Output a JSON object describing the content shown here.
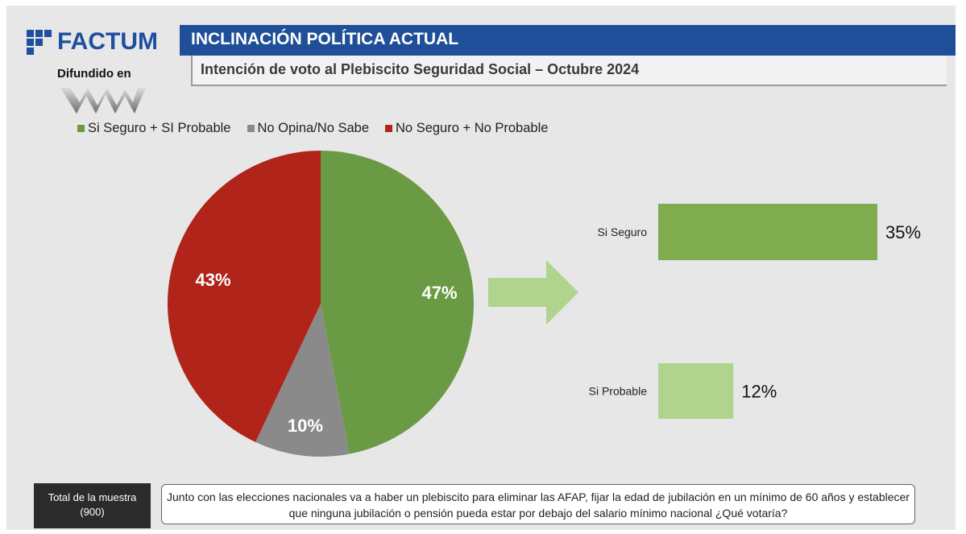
{
  "header": {
    "brand": "FACTUM",
    "brand_sub": "Difundido en",
    "title": "INCLINACIÓN POLÍTICA ACTUAL",
    "subtitle": "Intención de voto al Plebiscito Seguridad Social – Octubre 2024"
  },
  "colors": {
    "brand_blue": "#1f4f98",
    "si_seguro_probable": "#6a9a44",
    "no_opina": "#8a8a8a",
    "no_seguro_probable": "#b02419",
    "bar_si_seguro": "#7eac4f",
    "bar_si_probable": "#b0d48e",
    "arrow": "#b0d48e"
  },
  "footer": {
    "sample_label": "Total de la muestra",
    "sample_value": "(900)",
    "question": "Junto con las elecciones nacionales va a haber un plebiscito para eliminar las AFAP, fijar la edad de jubilación en un mínimo de 60 años y establecer que ninguna jubilación o pensión pueda estar por debajo del salario mínimo nacional ¿Qué votaría?"
  },
  "chart_data": [
    {
      "type": "pie",
      "legend_position": "top",
      "slices": [
        {
          "name": "Si Seguro + SI Probable",
          "value": 47,
          "label": "47%",
          "color": "#6a9a44"
        },
        {
          "name": "No Opina/No Sabe",
          "value": 10,
          "label": "10%",
          "color": "#8a8a8a"
        },
        {
          "name": "No Seguro + No Probable",
          "value": 43,
          "label": "43%",
          "color": "#b02419"
        }
      ]
    },
    {
      "type": "bar",
      "orientation": "horizontal",
      "categories": [
        "Si Seguro",
        "Si Probable"
      ],
      "values": [
        35,
        12
      ],
      "labels": [
        "35%",
        "12%"
      ],
      "colors": [
        "#7eac4f",
        "#b0d48e"
      ]
    }
  ]
}
